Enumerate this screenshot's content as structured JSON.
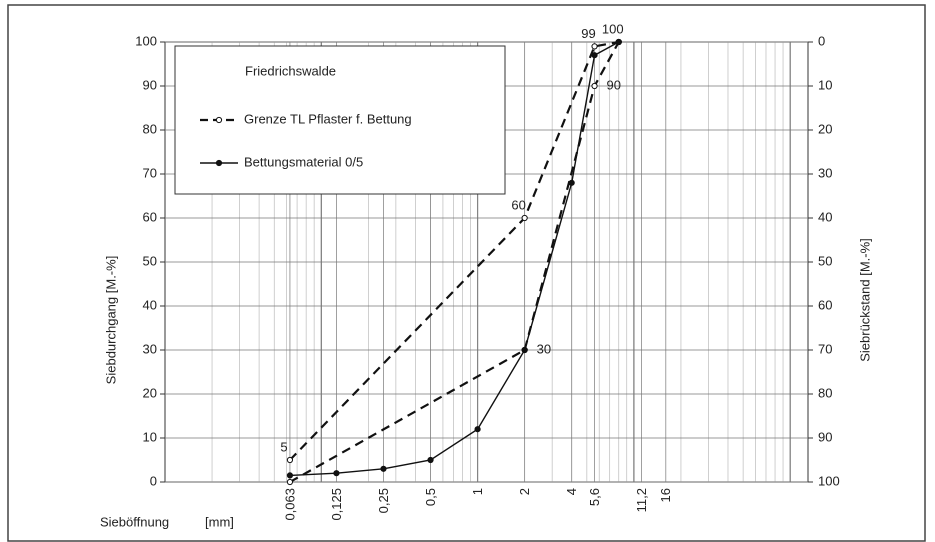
{
  "chart_data": {
    "type": "line",
    "legend_title": "Friedrichswalde",
    "y_label": "Siebdurchgang [M.-%]",
    "y2_label": "Siebrückstand [M.-%]",
    "x_label": "Sieböffnung",
    "x_unit": "[mm]",
    "log_x": true,
    "grid": true,
    "legend": "upper left",
    "xlim": [
      0.01,
      130
    ],
    "xticks": [
      {
        "value": 0.063,
        "label": "0,063"
      },
      {
        "value": 0.125,
        "label": "0,125"
      },
      {
        "value": 0.25,
        "label": "0,25"
      },
      {
        "value": 0.5,
        "label": "0,5"
      },
      1,
      2,
      4,
      {
        "value": 5.6,
        "label": "5,6"
      },
      {
        "value": 11.2,
        "label": "11,2"
      },
      16
    ],
    "ylim": [
      0,
      100
    ],
    "yticks": [
      0,
      10,
      20,
      30,
      40,
      50,
      60,
      70,
      80,
      90,
      100
    ],
    "y2lim": [
      100,
      0
    ],
    "y2ticks": [
      100,
      90,
      80,
      70,
      60,
      50,
      40,
      30,
      20,
      10,
      0
    ],
    "series": [
      {
        "name": "Grenze TL Pflaster f. Bettung",
        "color": "#111111",
        "dashed": true,
        "marker": "open",
        "x": [
          0.063,
          2,
          5.6,
          8
        ],
        "upper": [
          5,
          60,
          99,
          100
        ],
        "lower": [
          0,
          30,
          90,
          100
        ]
      },
      {
        "name": "Bettungsmaterial 0/5",
        "color": "#111111",
        "dashed": false,
        "marker": "filled",
        "x": [
          0.063,
          0.125,
          0.25,
          0.5,
          1,
          2,
          4,
          5.6,
          8
        ],
        "values": [
          1.5,
          2,
          3,
          5,
          12,
          30,
          68,
          97,
          100
        ]
      }
    ],
    "annotations": [
      {
        "text": "5",
        "x": 0.063,
        "y": 5
      },
      {
        "text": "60",
        "x": 2,
        "y": 60
      },
      {
        "text": "99",
        "x": 5.6,
        "y": 99
      },
      {
        "text": "100",
        "x": 8,
        "y": 100
      },
      {
        "text": "30",
        "x": 2,
        "y": 30
      },
      {
        "text": "90",
        "x": 5.6,
        "y": 90
      }
    ]
  }
}
